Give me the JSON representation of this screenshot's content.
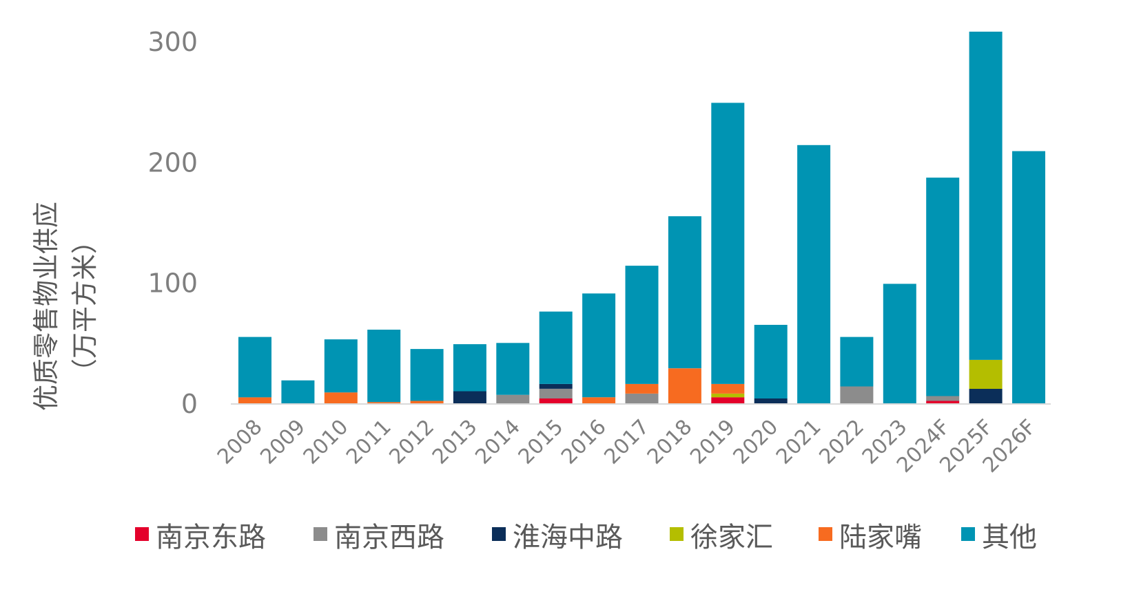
{
  "chart_data": {
    "type": "bar",
    "stacked": true,
    "title": "",
    "xlabel": "",
    "ylabel": [
      "优质零售物业供应",
      "（万平方米）"
    ],
    "ylim": [
      0,
      300
    ],
    "yticks": [
      0,
      100,
      200,
      300
    ],
    "grid": false,
    "legend_position": "bottom",
    "categories": [
      "2008",
      "2009",
      "2010",
      "2011",
      "2012",
      "2013",
      "2014",
      "2015",
      "2016",
      "2017",
      "2018",
      "2019",
      "2020",
      "2021",
      "2022",
      "2023",
      "2024F",
      "2025F",
      "2026F"
    ],
    "series": [
      {
        "name": "南京东路",
        "color": "#e4002b",
        "values": [
          0,
          0,
          0,
          0,
          0,
          0,
          0,
          4,
          0,
          0,
          0,
          5,
          0,
          0,
          0,
          0,
          2,
          0,
          0
        ]
      },
      {
        "name": "南京西路",
        "color": "#8c8c8c",
        "values": [
          0,
          0,
          0,
          0,
          0,
          0,
          7,
          8,
          0,
          8,
          0,
          0,
          0,
          0,
          14,
          0,
          4,
          0,
          0
        ]
      },
      {
        "name": "淮海中路",
        "color": "#0b2e59",
        "values": [
          0,
          0,
          0,
          0,
          0,
          10,
          0,
          4,
          0,
          0,
          0,
          0,
          4,
          0,
          0,
          0,
          0,
          12,
          0
        ]
      },
      {
        "name": "徐家汇",
        "color": "#b4be00",
        "values": [
          0,
          0,
          0,
          0,
          0,
          0,
          0,
          0,
          0,
          0,
          0,
          3,
          0,
          0,
          0,
          0,
          0,
          24,
          0
        ]
      },
      {
        "name": "陆家嘴",
        "color": "#f76b20",
        "values": [
          5,
          0,
          9,
          1,
          2,
          0,
          0,
          0,
          5,
          8,
          29,
          8,
          0,
          0,
          0,
          0,
          0,
          0,
          0
        ]
      },
      {
        "name": "其他",
        "color": "#0094b3",
        "values": [
          50,
          19,
          44,
          60,
          43,
          39,
          43,
          60,
          86,
          98,
          126,
          233,
          61,
          214,
          41,
          99,
          181,
          272,
          209
        ]
      }
    ]
  }
}
